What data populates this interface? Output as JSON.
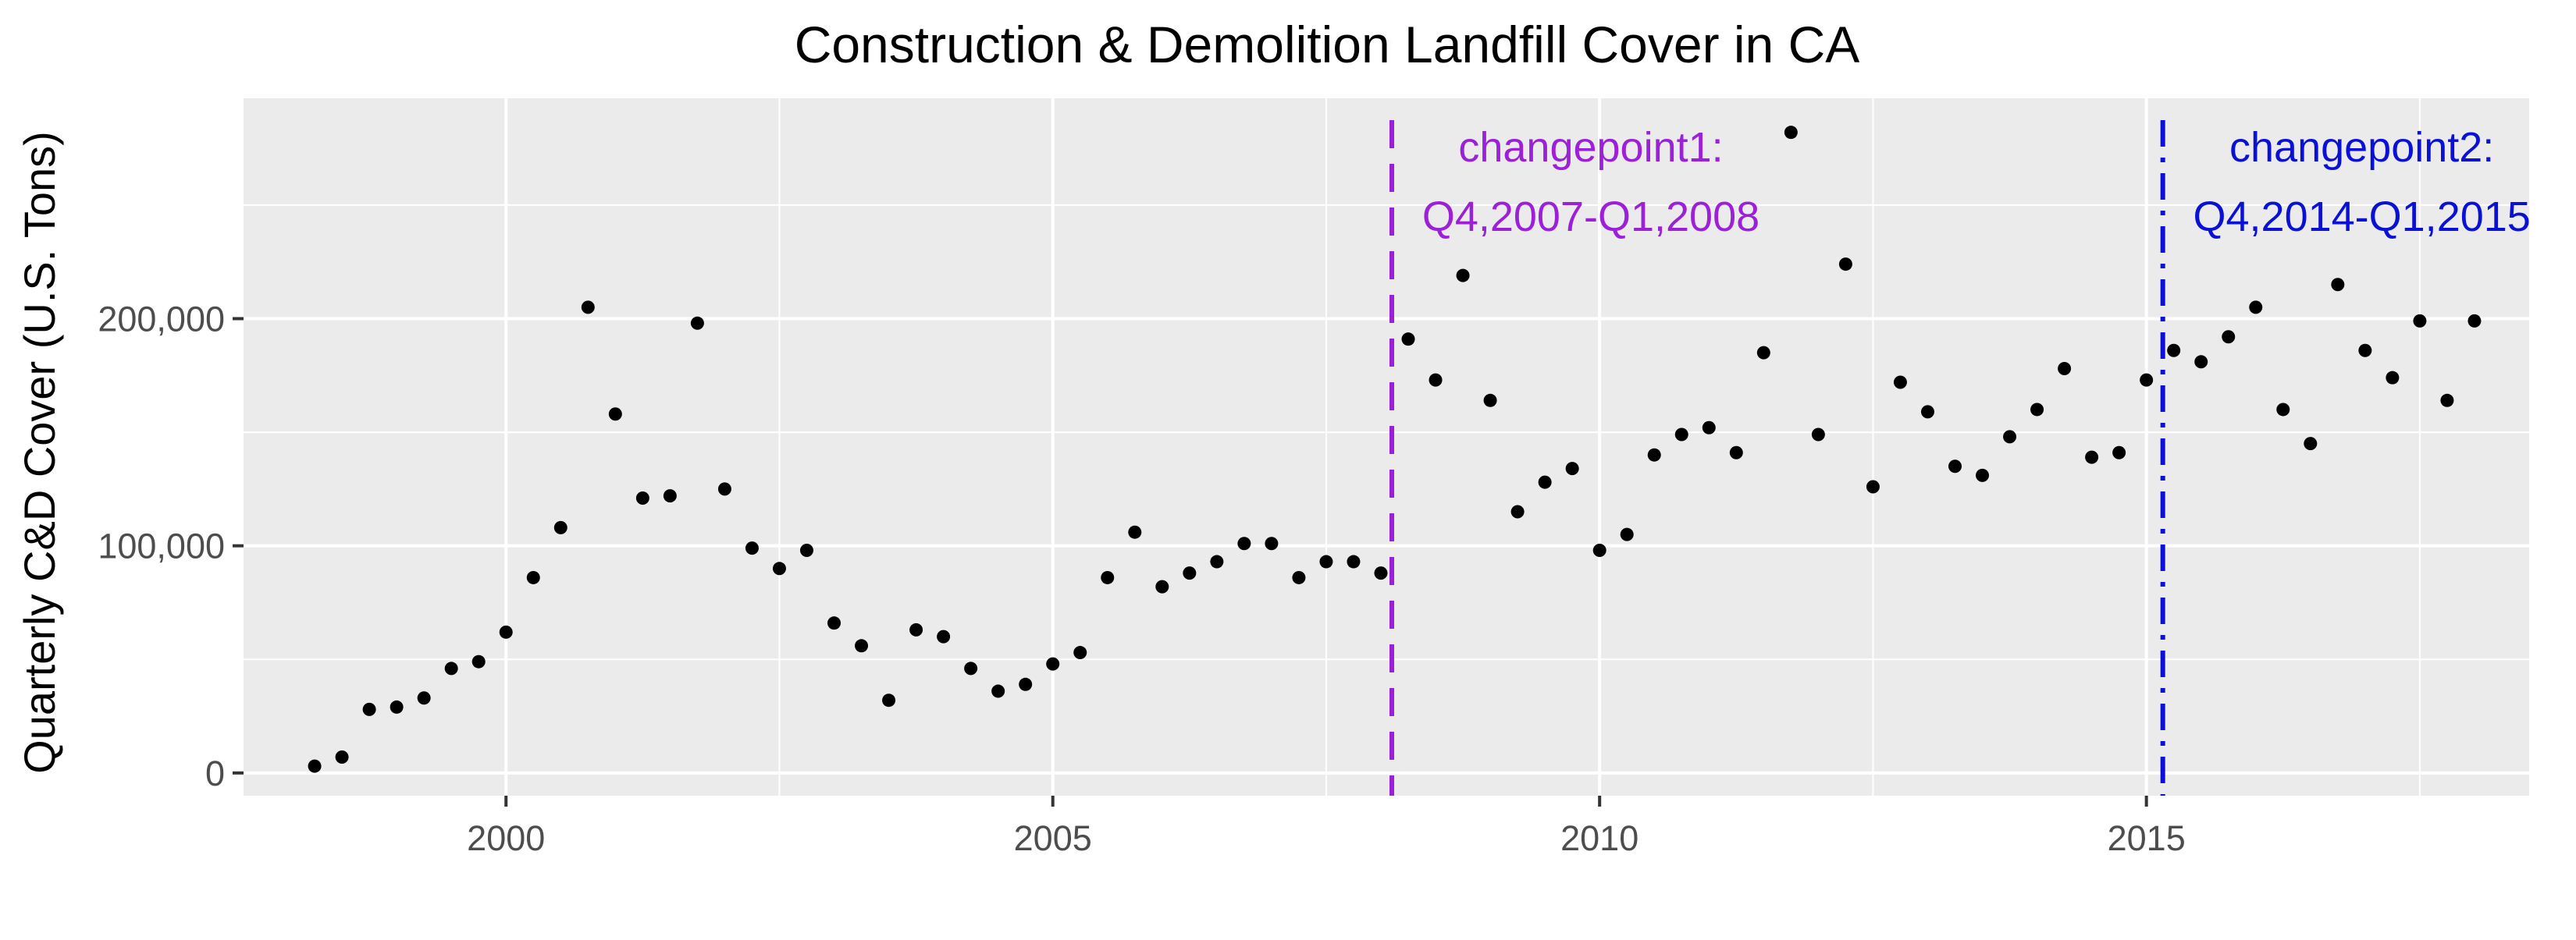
{
  "chart_data": {
    "type": "scatter",
    "title": "Construction & Demolition Landfill Cover in CA",
    "xlabel": "",
    "ylabel": "Quarterly C&D Cover (U.S. Tons)",
    "xlim": [
      1997.6,
      2018.5
    ],
    "ylim": [
      -10000,
      297000
    ],
    "x_ticks": [
      2000,
      2005,
      2010,
      2015
    ],
    "x_tick_labels": [
      "2000",
      "2005",
      "2010",
      "2015"
    ],
    "y_ticks": [
      0,
      100000,
      200000
    ],
    "y_tick_labels": [
      "0",
      "100,000",
      "200,000"
    ],
    "grid": true,
    "panel_background": "#ebebeb",
    "grid_color": "#ffffff",
    "point_color": "#000000",
    "series": [
      {
        "x": [
          1998.25,
          1998.5,
          1998.75,
          1999.0,
          1999.25,
          1999.5,
          1999.75,
          2000.0,
          2000.25,
          2000.5,
          2000.75,
          2001.0,
          2001.25,
          2001.5,
          2001.75,
          2002.0,
          2002.25,
          2002.5,
          2002.75,
          2003.0,
          2003.25,
          2003.5,
          2003.75,
          2004.0,
          2004.25,
          2004.5,
          2004.75,
          2005.0,
          2005.25,
          2005.5,
          2005.75,
          2006.0,
          2006.25,
          2006.5,
          2006.75,
          2007.0,
          2007.25,
          2007.5,
          2007.75,
          2008.0,
          2008.25,
          2008.5,
          2008.75,
          2009.0,
          2009.25,
          2009.5,
          2009.75,
          2010.0,
          2010.25,
          2010.5,
          2010.75,
          2011.0,
          2011.25,
          2011.5,
          2011.75,
          2012.0,
          2012.25,
          2012.5,
          2012.75,
          2013.0,
          2013.25,
          2013.5,
          2013.75,
          2014.0,
          2014.25,
          2014.5,
          2014.75,
          2015.0,
          2015.25,
          2015.5,
          2015.75,
          2016.0,
          2016.25,
          2016.5,
          2016.75,
          2017.0,
          2017.25,
          2017.5,
          2017.75,
          2018.0
        ],
        "y": [
          3000,
          7000,
          28000,
          29000,
          33000,
          46000,
          49000,
          62000,
          86000,
          108000,
          205000,
          158000,
          121000,
          122000,
          198000,
          125000,
          99000,
          90000,
          98000,
          66000,
          56000,
          32000,
          63000,
          60000,
          46000,
          36000,
          39000,
          48000,
          53000,
          86000,
          106000,
          82000,
          88000,
          93000,
          101000,
          101000,
          86000,
          93000,
          93000,
          88000,
          191000,
          173000,
          219000,
          164000,
          115000,
          128000,
          134000,
          98000,
          105000,
          140000,
          149000,
          152000,
          141000,
          185000,
          282000,
          149000,
          224000,
          126000,
          172000,
          159000,
          135000,
          131000,
          148000,
          160000,
          178000,
          139000,
          141000,
          173000,
          186000,
          181000,
          192000,
          205000,
          160000,
          145000,
          215000,
          186000,
          174000,
          199000,
          164000,
          199000
        ]
      }
    ],
    "annotations": [
      {
        "x": 2008.1,
        "style": "dashed",
        "color": "#9b20d8",
        "line1": "changepoint1:",
        "line2": "Q4,2007-Q1,2008"
      },
      {
        "x": 2015.15,
        "style": "dotdash",
        "color": "#0a10d4",
        "line1": "changepoint2:",
        "line2": "Q4,2014-Q1,2015"
      }
    ]
  }
}
